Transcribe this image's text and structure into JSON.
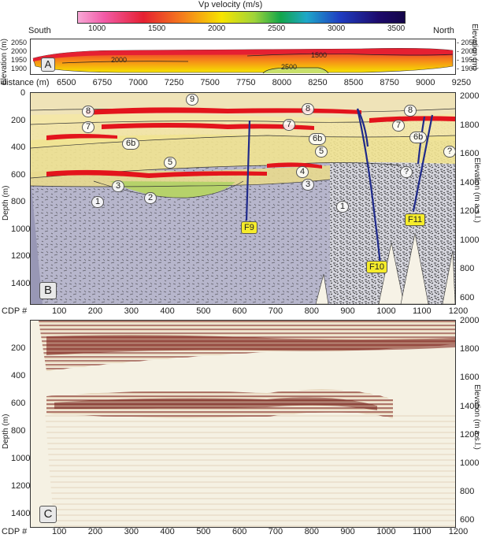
{
  "colorbar": {
    "title": "Vp velocity (m/s)",
    "ticks": [
      "1000",
      "1500",
      "2000",
      "2500",
      "3000",
      "3500"
    ]
  },
  "panel_a": {
    "letter": "A",
    "south": "South",
    "north": "North",
    "left_axis_label": "Elevation (m)",
    "right_axis_label": "Elevation (m)",
    "left_ticks": [
      "2050",
      "2000",
      "1950",
      "1900"
    ],
    "right_ticks": [
      "- 2050",
      "- 2000",
      "- 1950",
      "- 1900"
    ],
    "contours": [
      "2000",
      "1500",
      "2500"
    ],
    "distance_label": "distance (m)",
    "distance_ticks": [
      "6500",
      "6750",
      "7000",
      "7250",
      "7500",
      "7750",
      "8000",
      "8250",
      "8500",
      "8750",
      "9000",
      "9250"
    ]
  },
  "panel_b": {
    "letter": "B",
    "depth_label": "Depth (m)",
    "elev_label": "Elevation (m a.s.l.)",
    "depth_ticks": [
      "0",
      "200",
      "400",
      "600",
      "800",
      "1000",
      "1200",
      "1400"
    ],
    "elev_ticks": [
      "2000",
      "1800",
      "1600",
      "1400",
      "1200",
      "1000",
      "800",
      "600"
    ],
    "units": [
      "9",
      "8",
      "8",
      "8",
      "7",
      "7",
      "7",
      "6b",
      "6b",
      "6b",
      "5",
      "5",
      "4",
      "3",
      "3",
      "2",
      "1",
      "1",
      "?",
      "?"
    ],
    "faults": [
      "F9",
      "F10",
      "F11"
    ]
  },
  "panel_c": {
    "letter": "C",
    "depth_label": "Depth (m)",
    "elev_label": "Elevation (m a.s.l.)",
    "depth_ticks": [
      "200",
      "400",
      "600",
      "800",
      "1000",
      "1200",
      "1400"
    ],
    "elev_ticks": [
      "2000",
      "1800",
      "1600",
      "1400",
      "1200",
      "1000",
      "800",
      "600"
    ]
  },
  "cdp_axis": {
    "label": "CDP #",
    "ticks": [
      "100",
      "200",
      "300",
      "400",
      "500",
      "600",
      "700",
      "800",
      "900",
      "1000",
      "1100",
      "1200"
    ]
  },
  "colors": {
    "low_velocity": "#f25ba7",
    "mid_velocity": "#f7e400",
    "high_velocity": "#1d0a6b",
    "reflector": "#e3141c",
    "fault": "#1f2a8a",
    "fault_label_bg": "#f5ec2b"
  }
}
